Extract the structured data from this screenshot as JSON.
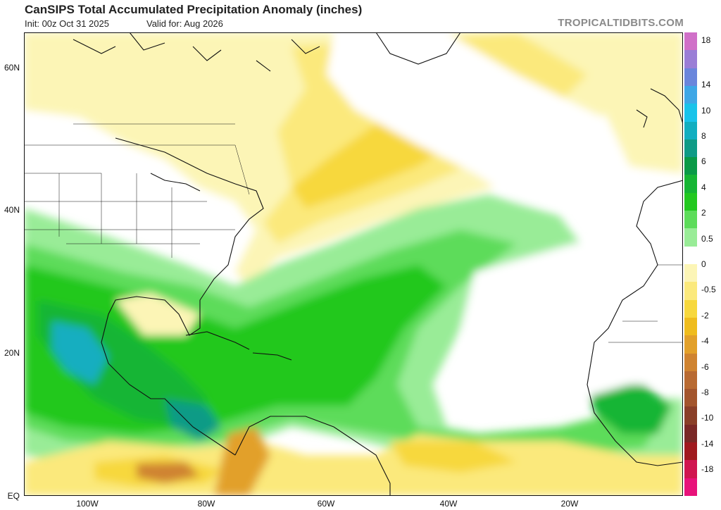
{
  "header": {
    "title": "CanSIPS Total Accumulated Precipitation Anomaly (inches)",
    "init": "Init: 00z Oct 31 2025",
    "valid": "Valid for: Aug 2026",
    "brand": "TROPICALTIDBITS.COM"
  },
  "map": {
    "lat_labels": [
      "60N",
      "40N",
      "20N",
      "EQ"
    ],
    "lon_labels": [
      "100W",
      "80W",
      "60W",
      "40W",
      "20W"
    ]
  },
  "colorbar": {
    "labels": [
      "18",
      "14",
      "10",
      "8",
      "6",
      "4",
      "2",
      "0.5",
      "0",
      "-0.5",
      "-2",
      "-4",
      "-6",
      "-8",
      "-10",
      "-14",
      "-18"
    ],
    "colors": [
      "#d070c8",
      "#9a7ed6",
      "#6a86dc",
      "#3ea7e6",
      "#19c3ea",
      "#12aec0",
      "#0f9b86",
      "#0a9a47",
      "#16b534",
      "#22c81f",
      "#5ddc5a",
      "#99ec97",
      "#ffffff",
      "#fcf5b6",
      "#fbe97c",
      "#f7d83d",
      "#efbc1d",
      "#e2a02a",
      "#cf8330",
      "#b86a32",
      "#a3552d",
      "#8a3f28",
      "#7a2826",
      "#a01a1e",
      "#d01650",
      "#e8127a"
    ]
  }
}
